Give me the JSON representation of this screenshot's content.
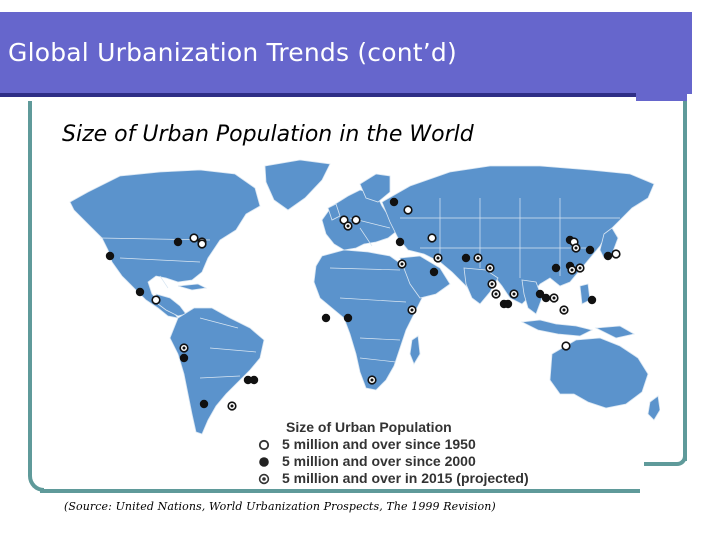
{
  "slide": {
    "title": "Global Urbanization Trends (cont’d)",
    "subtitle": "Size of Urban Population in the World",
    "source": "(Source: United Nations, World Urbanization Prospects, The 1999 Revision)"
  },
  "map": {
    "land_color": "#5b93cc",
    "border_color": "#d9e6f2",
    "legend": {
      "title": "Size of Urban Population",
      "items": [
        {
          "symbol": "open-circle",
          "label": "5 million and over since 1950"
        },
        {
          "symbol": "filled-circle",
          "label": "5 million and over since 2000"
        },
        {
          "symbol": "ring-dot",
          "label": "5 million and over in 2015 (projected)"
        }
      ]
    },
    "colors": {
      "title_bar": "#6666cc",
      "frame": "#5f9a9a",
      "marker": "#111111"
    }
  }
}
